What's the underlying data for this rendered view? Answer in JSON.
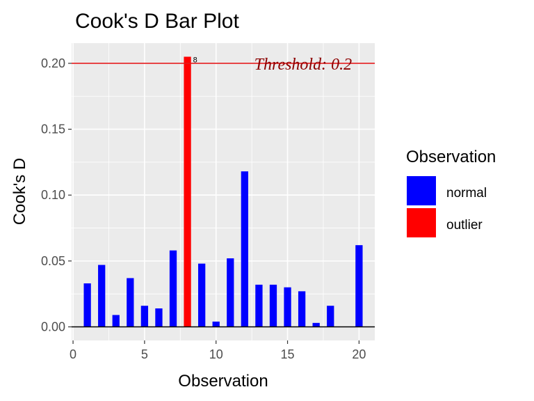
{
  "chart_data": {
    "type": "bar",
    "title": "Cook's D Bar Plot",
    "xlabel": "Observation",
    "ylabel": "Cook's D",
    "x": [
      1,
      2,
      3,
      4,
      5,
      6,
      7,
      8,
      9,
      10,
      11,
      12,
      13,
      14,
      15,
      16,
      17,
      18,
      19,
      20
    ],
    "values": [
      0.033,
      0.047,
      0.009,
      0.037,
      0.016,
      0.014,
      0.058,
      0.205,
      0.048,
      0.004,
      0.052,
      0.118,
      0.032,
      0.032,
      0.03,
      0.027,
      0.003,
      0.016,
      0.0,
      0.062
    ],
    "groups": [
      "normal",
      "normal",
      "normal",
      "normal",
      "normal",
      "normal",
      "normal",
      "outlier",
      "normal",
      "normal",
      "normal",
      "normal",
      "normal",
      "normal",
      "normal",
      "normal",
      "normal",
      "normal",
      "normal",
      "normal"
    ],
    "xlim": [
      -0.1,
      21.1
    ],
    "ylim": [
      -0.0103,
      0.2153
    ],
    "xticks": [
      0,
      5,
      10,
      15,
      20
    ],
    "yticks": [
      0.0,
      0.05,
      0.1,
      0.15,
      0.2
    ],
    "ytick_labels": [
      "0.00",
      "0.05",
      "0.10",
      "0.15",
      "0.20"
    ],
    "grid": true,
    "threshold": {
      "value": 0.2,
      "label": "Threshold: 0.2",
      "color": "#e31a1c"
    },
    "annotations": [
      {
        "x": 8,
        "y": 0.205,
        "text": "8"
      }
    ],
    "legend": {
      "title": "Observation",
      "position": "right",
      "items": [
        {
          "label": "normal",
          "color": "#0000ff"
        },
        {
          "label": "outlier",
          "color": "#ff0000"
        }
      ]
    },
    "colors": {
      "normal": "#0000ff",
      "outlier": "#ff0000",
      "panel": "#ebebeb",
      "grid": "#ffffff",
      "baseline": "#000000"
    }
  }
}
